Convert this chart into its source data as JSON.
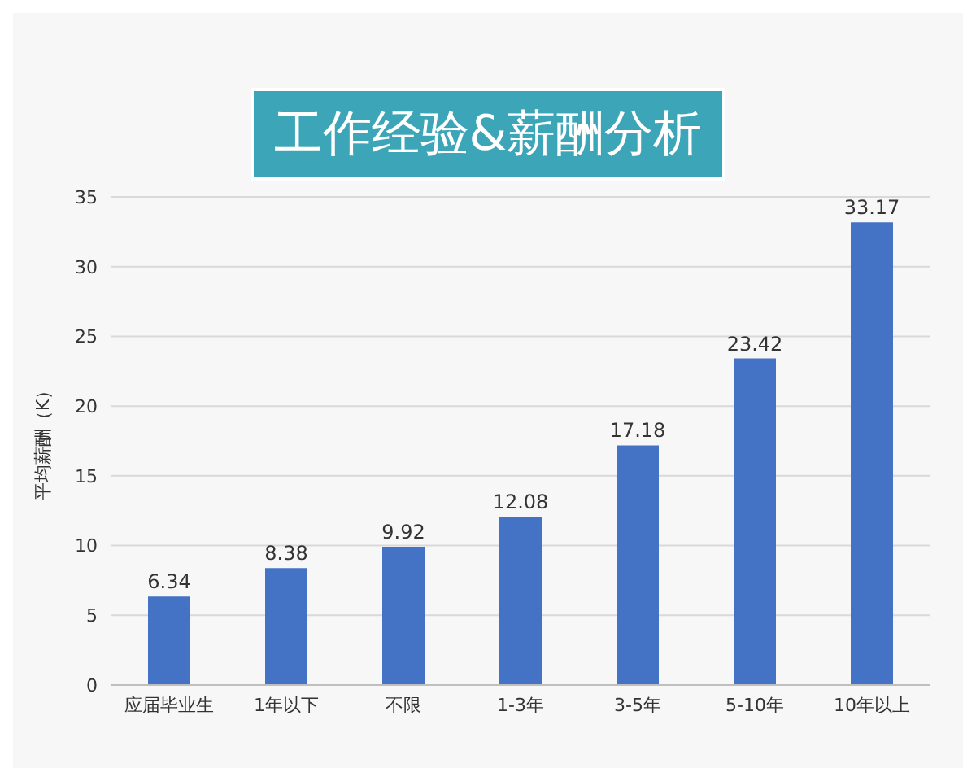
{
  "chart_data": {
    "type": "bar",
    "title": "工作经验&薪酬分析",
    "ylabel": "平均薪酬（K）",
    "categories": [
      "应届毕业生",
      "1年以下",
      "不限",
      "1-3年",
      "3-5年",
      "5-10年",
      "10年以上"
    ],
    "values": [
      6.34,
      8.38,
      9.92,
      12.08,
      17.18,
      23.42,
      33.17
    ],
    "color": "#4472c4",
    "ylim": [
      0,
      35
    ],
    "yticks": [
      0,
      5,
      10,
      15,
      20,
      25,
      30,
      35
    ],
    "grid": "y",
    "data_labels": true
  }
}
